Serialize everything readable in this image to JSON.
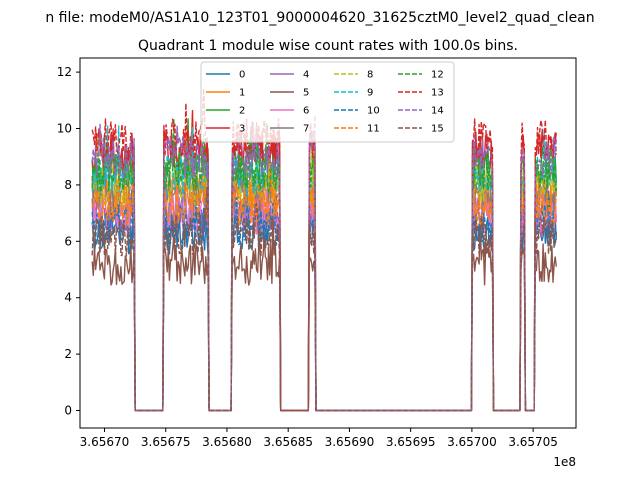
{
  "suptitle": "n file: modeM0/AS1A10_123T01_9000004620_31625cztM0_level2_quad_clean",
  "chart_data": {
    "type": "line",
    "title": "Quadrant 1 module wise count rates with 100.0s bins.",
    "xlabel": "",
    "ylabel": "",
    "x_offset_label": "1e8",
    "xlim": [
      3.65668,
      3.657085
    ],
    "ylim": [
      -0.62,
      12.5
    ],
    "x_ticks": [
      3.6567,
      3.65675,
      3.6568,
      3.65685,
      3.6569,
      3.65695,
      3.657,
      3.65705
    ],
    "x_tick_labels": [
      "3.65670",
      "3.65675",
      "3.65680",
      "3.65685",
      "3.65690",
      "3.65695",
      "3.65700",
      "3.65705"
    ],
    "y_ticks": [
      0,
      2,
      4,
      6,
      8,
      10,
      12
    ],
    "y_tick_labels": [
      "0",
      "2",
      "4",
      "6",
      "8",
      "10",
      "12"
    ],
    "grid": false,
    "legend_placement": "upper-center",
    "legend_columns": 4,
    "active_intervals": [
      [
        3.65669,
        3.656725
      ],
      [
        3.656748,
        3.656785
      ],
      [
        3.656804,
        3.656843
      ],
      [
        3.656867,
        3.656872
      ],
      [
        3.657,
        3.657017
      ],
      [
        3.65704,
        3.657043
      ],
      [
        3.657051,
        3.657069
      ]
    ],
    "series": [
      {
        "name": "0",
        "level": 6.3,
        "color": "#1f77b4",
        "dashed": false
      },
      {
        "name": "1",
        "level": 7.6,
        "color": "#ff7f0e",
        "dashed": false
      },
      {
        "name": "2",
        "level": 8.7,
        "color": "#2ca02c",
        "dashed": false
      },
      {
        "name": "3",
        "level": 9.2,
        "color": "#d62728",
        "dashed": false
      },
      {
        "name": "4",
        "level": 6.9,
        "color": "#9467bd",
        "dashed": false
      },
      {
        "name": "5",
        "level": 5.2,
        "color": "#8c564b",
        "dashed": false
      },
      {
        "name": "6",
        "level": 7.0,
        "color": "#e377c2",
        "dashed": false
      },
      {
        "name": "7",
        "level": 7.8,
        "color": "#7f7f7f",
        "dashed": false
      },
      {
        "name": "8",
        "level": 8.0,
        "color": "#bcbd22",
        "dashed": true
      },
      {
        "name": "9",
        "level": 8.3,
        "color": "#17becf",
        "dashed": true
      },
      {
        "name": "10",
        "level": 6.6,
        "color": "#1f77b4",
        "dashed": true
      },
      {
        "name": "11",
        "level": 7.3,
        "color": "#ff7f0e",
        "dashed": true
      },
      {
        "name": "12",
        "level": 8.5,
        "color": "#2ca02c",
        "dashed": true
      },
      {
        "name": "13",
        "level": 9.6,
        "color": "#d62728",
        "dashed": true
      },
      {
        "name": "14",
        "level": 9.0,
        "color": "#9467bd",
        "dashed": true
      },
      {
        "name": "15",
        "level": 6.2,
        "color": "#8c564b",
        "dashed": true
      }
    ]
  }
}
